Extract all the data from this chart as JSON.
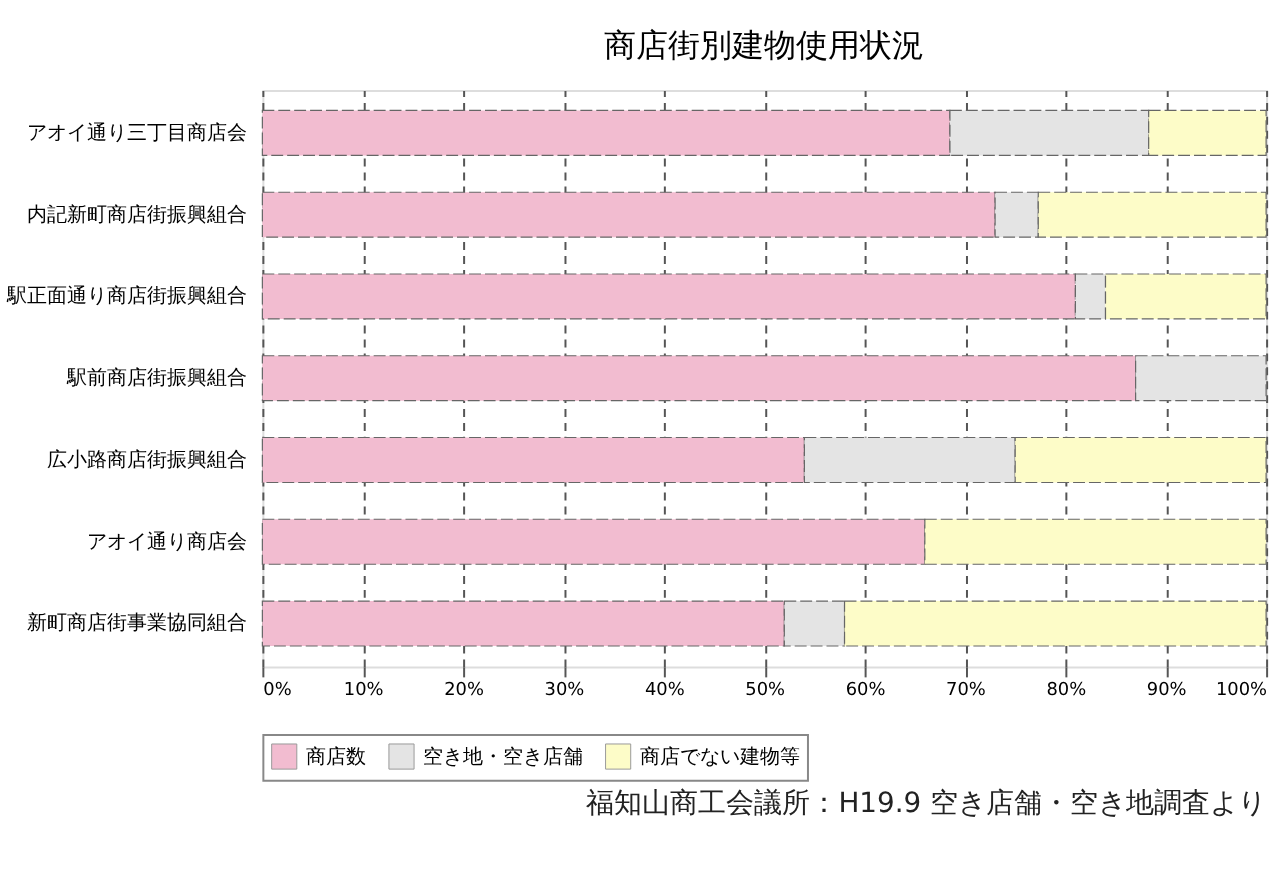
{
  "chart_data": {
    "type": "bar",
    "orientation": "horizontal",
    "stacked": true,
    "title": "商店街別建物使用状況",
    "categories": [
      "アオイ通り三丁目商店会",
      "内記新町商店街振興組合",
      "駅正面通り商店街振興組合",
      "駅前商店街振興組合",
      "広小路商店街振興組合",
      "アオイ通り商店会",
      "新町商店街事業協同組合"
    ],
    "series": [
      {
        "name": "商店数",
        "color": "#f2bcd0",
        "values": [
          68.5,
          73,
          81,
          87,
          54,
          66,
          52
        ]
      },
      {
        "name": "空き地・空き店舗",
        "color": "#e4e4e4",
        "values": [
          19.8,
          4.3,
          3,
          13,
          21,
          0,
          6
        ]
      },
      {
        "name": "商店でない建物等",
        "color": "#fdfcc8",
        "values": [
          11.7,
          22.7,
          16,
          0,
          25,
          34,
          42
        ]
      }
    ],
    "xlim": [
      0,
      100
    ],
    "xticks": [
      {
        "value": 0,
        "label": "0%"
      },
      {
        "value": 10,
        "label": "10%"
      },
      {
        "value": 20,
        "label": "20%"
      },
      {
        "value": 30,
        "label": "30%"
      },
      {
        "value": 40,
        "label": "40%"
      },
      {
        "value": 50,
        "label": "50%"
      },
      {
        "value": 60,
        "label": "60%"
      },
      {
        "value": 70,
        "label": "70%"
      },
      {
        "value": 80,
        "label": "80%"
      },
      {
        "value": 90,
        "label": "90%"
      },
      {
        "value": 100,
        "label": "100%"
      }
    ],
    "grid": "x",
    "legend": "bottom",
    "annotations": [
      "福知山商工会議所：H19.9 空き店舗・空き地調査より"
    ]
  }
}
